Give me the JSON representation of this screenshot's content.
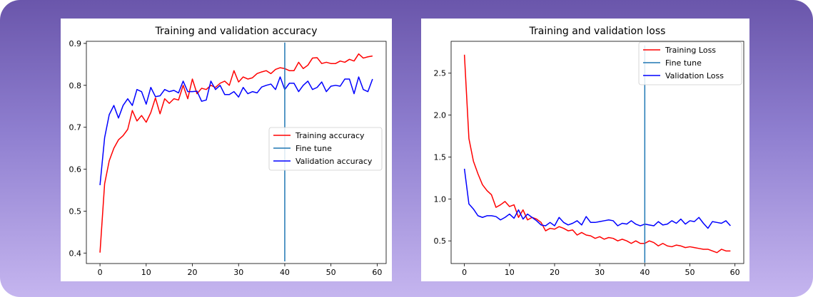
{
  "chart_data": [
    {
      "type": "line",
      "title": "Training and validation accuracy",
      "xlabel": "",
      "ylabel": "",
      "xlim": [
        -2.95,
        61.95
      ],
      "ylim": [
        0.375,
        0.905
      ],
      "xticks": [
        0,
        10,
        20,
        30,
        40,
        50,
        60
      ],
      "yticks": [
        0.4,
        0.5,
        0.6,
        0.7,
        0.8,
        0.9
      ],
      "ytick_labels": [
        "0.4",
        "0.5",
        "0.6",
        "0.7",
        "0.8",
        "0.9"
      ],
      "grid": false,
      "legend_position": "center-right",
      "x": [
        0,
        1,
        2,
        3,
        4,
        5,
        6,
        7,
        8,
        9,
        10,
        11,
        12,
        13,
        14,
        15,
        16,
        17,
        18,
        19,
        20,
        21,
        22,
        23,
        24,
        25,
        26,
        27,
        28,
        29,
        30,
        31,
        32,
        33,
        34,
        35,
        36,
        37,
        38,
        39,
        40,
        41,
        42,
        43,
        44,
        45,
        46,
        47,
        48,
        49,
        50,
        51,
        52,
        53,
        54,
        55,
        56,
        57,
        58,
        59
      ],
      "series": [
        {
          "name": "Training accuracy",
          "color": "#ff0000",
          "values": [
            0.401,
            0.565,
            0.62,
            0.65,
            0.67,
            0.68,
            0.695,
            0.74,
            0.715,
            0.728,
            0.712,
            0.735,
            0.77,
            0.732,
            0.768,
            0.757,
            0.768,
            0.765,
            0.8,
            0.768,
            0.815,
            0.78,
            0.793,
            0.79,
            0.8,
            0.795,
            0.805,
            0.81,
            0.8,
            0.835,
            0.808,
            0.82,
            0.815,
            0.818,
            0.828,
            0.832,
            0.835,
            0.828,
            0.838,
            0.842,
            0.84,
            0.835,
            0.835,
            0.855,
            0.84,
            0.848,
            0.865,
            0.866,
            0.852,
            0.855,
            0.852,
            0.852,
            0.858,
            0.855,
            0.862,
            0.858,
            0.875,
            0.865,
            0.868,
            0.87
          ]
        },
        {
          "name": "Validation accuracy",
          "color": "#0000ff",
          "values": [
            0.562,
            0.675,
            0.73,
            0.752,
            0.722,
            0.752,
            0.768,
            0.752,
            0.79,
            0.785,
            0.755,
            0.795,
            0.773,
            0.775,
            0.79,
            0.785,
            0.788,
            0.782,
            0.81,
            0.785,
            0.785,
            0.786,
            0.762,
            0.765,
            0.81,
            0.79,
            0.8,
            0.778,
            0.778,
            0.785,
            0.772,
            0.795,
            0.78,
            0.785,
            0.782,
            0.796,
            0.8,
            0.803,
            0.79,
            0.82,
            0.79,
            0.805,
            0.805,
            0.785,
            0.8,
            0.81,
            0.79,
            0.795,
            0.808,
            0.785,
            0.798,
            0.8,
            0.798,
            0.815,
            0.815,
            0.78,
            0.82,
            0.79,
            0.785,
            0.815
          ]
        }
      ],
      "vline": {
        "name": "Fine tune",
        "x": 40,
        "y_range": [
          0.38,
          0.902
        ],
        "color": "#1f77b4"
      },
      "legend_order": [
        "Training accuracy",
        "Fine tune",
        "Validation accuracy"
      ]
    },
    {
      "type": "line",
      "title": "Training and validation loss",
      "xlabel": "",
      "ylabel": "",
      "xlim": [
        -2.95,
        61.95
      ],
      "ylim": [
        0.23,
        2.88
      ],
      "xticks": [
        0,
        10,
        20,
        30,
        40,
        50,
        60
      ],
      "yticks": [
        0.5,
        1.0,
        1.5,
        2.0,
        2.5
      ],
      "ytick_labels": [
        "0.5",
        "1.0",
        "1.5",
        "2.0",
        "2.5"
      ],
      "grid": false,
      "legend_position": "upper-right",
      "x": [
        0,
        1,
        2,
        3,
        4,
        5,
        6,
        7,
        8,
        9,
        10,
        11,
        12,
        13,
        14,
        15,
        16,
        17,
        18,
        19,
        20,
        21,
        22,
        23,
        24,
        25,
        26,
        27,
        28,
        29,
        30,
        31,
        32,
        33,
        34,
        35,
        36,
        37,
        38,
        39,
        40,
        41,
        42,
        43,
        44,
        45,
        46,
        47,
        48,
        49,
        50,
        51,
        52,
        53,
        54,
        55,
        56,
        57,
        58,
        59
      ],
      "series": [
        {
          "name": "Training Loss",
          "color": "#ff0000",
          "values": [
            2.72,
            1.72,
            1.45,
            1.3,
            1.17,
            1.1,
            1.05,
            0.9,
            0.93,
            0.97,
            0.91,
            0.93,
            0.78,
            0.87,
            0.75,
            0.78,
            0.76,
            0.72,
            0.62,
            0.65,
            0.64,
            0.67,
            0.65,
            0.62,
            0.63,
            0.57,
            0.6,
            0.57,
            0.56,
            0.53,
            0.55,
            0.52,
            0.54,
            0.53,
            0.5,
            0.52,
            0.5,
            0.47,
            0.5,
            0.47,
            0.47,
            0.5,
            0.48,
            0.44,
            0.47,
            0.44,
            0.43,
            0.45,
            0.44,
            0.42,
            0.43,
            0.42,
            0.41,
            0.4,
            0.4,
            0.38,
            0.36,
            0.4,
            0.38,
            0.38
          ]
        },
        {
          "name": "Validation Loss",
          "color": "#0000ff",
          "values": [
            1.36,
            0.94,
            0.88,
            0.8,
            0.78,
            0.8,
            0.8,
            0.79,
            0.75,
            0.78,
            0.82,
            0.77,
            0.87,
            0.76,
            0.82,
            0.78,
            0.74,
            0.69,
            0.68,
            0.72,
            0.68,
            0.78,
            0.72,
            0.69,
            0.71,
            0.74,
            0.69,
            0.79,
            0.72,
            0.72,
            0.73,
            0.74,
            0.75,
            0.74,
            0.68,
            0.71,
            0.7,
            0.74,
            0.7,
            0.68,
            0.7,
            0.69,
            0.68,
            0.73,
            0.69,
            0.7,
            0.74,
            0.71,
            0.76,
            0.7,
            0.74,
            0.73,
            0.78,
            0.71,
            0.65,
            0.73,
            0.72,
            0.71,
            0.74,
            0.68
          ]
        }
      ],
      "vline": {
        "name": "Fine tune",
        "x": 40,
        "y_range": [
          0.24,
          2.83
        ],
        "color": "#1f77b4"
      },
      "legend_order": [
        "Training Loss",
        "Fine tune",
        "Validation Loss"
      ]
    }
  ]
}
